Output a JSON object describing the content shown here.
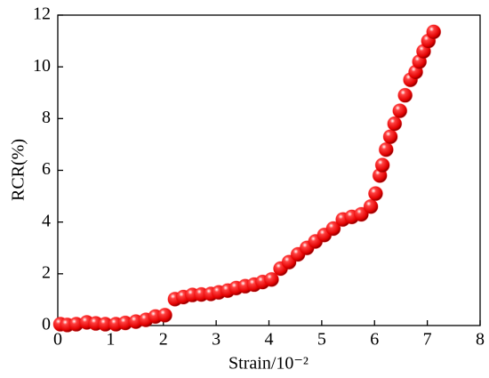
{
  "chart_data": {
    "type": "scatter",
    "xlabel": "Strain/10⁻²",
    "ylabel": "RCR(%)",
    "xlim": [
      0,
      8
    ],
    "xticks": [
      0,
      1,
      2,
      3,
      4,
      5,
      6,
      7,
      8
    ],
    "ylim": [
      0,
      12
    ],
    "yticks": [
      0,
      2,
      4,
      6,
      8,
      10,
      12
    ],
    "series": [
      {
        "color": "#ff0000",
        "x": [
          0.05,
          0.18,
          0.35,
          0.55,
          0.72,
          0.9,
          1.1,
          1.28,
          1.48,
          1.67,
          1.85,
          2.03,
          2.22,
          2.38,
          2.55,
          2.72,
          2.9,
          3.05,
          3.22,
          3.38,
          3.55,
          3.72,
          3.88,
          4.05,
          4.22,
          4.38,
          4.55,
          4.72,
          4.88,
          5.05,
          5.22,
          5.4,
          5.57,
          5.75,
          5.93,
          6.02,
          6.1,
          6.15,
          6.22,
          6.3,
          6.38,
          6.48,
          6.58,
          6.68,
          6.78,
          6.85,
          6.93,
          7.02,
          7.12
        ],
        "values": [
          0.05,
          0.02,
          0.05,
          0.12,
          0.08,
          0.05,
          0.05,
          0.1,
          0.15,
          0.22,
          0.35,
          0.4,
          1.02,
          1.1,
          1.18,
          1.2,
          1.22,
          1.28,
          1.35,
          1.45,
          1.52,
          1.58,
          1.68,
          1.78,
          2.2,
          2.45,
          2.75,
          3.0,
          3.25,
          3.5,
          3.75,
          4.1,
          4.2,
          4.3,
          4.6,
          5.1,
          5.8,
          6.2,
          6.8,
          7.3,
          7.8,
          8.3,
          8.9,
          9.5,
          9.8,
          10.2,
          10.6,
          11.0,
          11.35
        ]
      }
    ]
  }
}
